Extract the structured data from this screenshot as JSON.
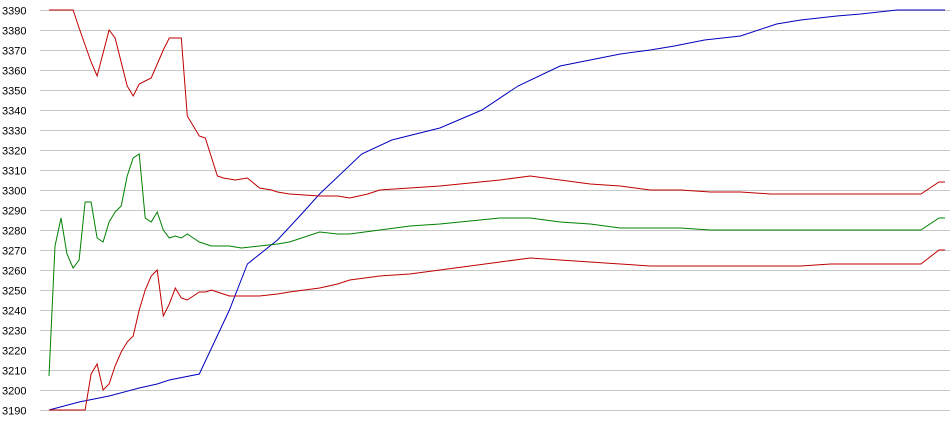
{
  "chart_data": {
    "type": "line",
    "title": "",
    "xlabel": "",
    "ylabel": "",
    "ylim": [
      3190,
      3390
    ],
    "yticks": [
      3190,
      3200,
      3210,
      3220,
      3230,
      3240,
      3250,
      3260,
      3270,
      3280,
      3290,
      3300,
      3310,
      3320,
      3330,
      3340,
      3350,
      3360,
      3370,
      3380,
      3390
    ],
    "ytick_labels": [
      "3190",
      "3200",
      "3210",
      "3220",
      "3230",
      "3240",
      "3250",
      "3260",
      "3270",
      "3280",
      "3290",
      "3300",
      "3310",
      "3320",
      "3330",
      "3340",
      "3350",
      "3360",
      "3370",
      "3380",
      "3390"
    ],
    "grid": true,
    "legend": "none",
    "xlim": [
      0,
      149
    ],
    "series": [
      {
        "color": "#0000c0",
        "x": [
          0,
          5,
          10,
          15,
          18,
          20,
          25,
          30,
          33,
          38,
          42,
          45,
          52,
          57,
          65,
          72,
          78,
          85,
          90,
          95,
          100,
          104,
          109,
          115,
          121,
          125,
          131,
          135,
          141,
          149
        ],
        "values": [
          3190,
          3194,
          3197,
          3201,
          3203,
          3205,
          3208,
          3240,
          3263,
          3275,
          3288,
          3298,
          3318,
          3325,
          3331,
          3340,
          3352,
          3362,
          3365,
          3368,
          3370,
          3372,
          3375,
          3377,
          3383,
          3385,
          3387,
          3388,
          3390,
          3390
        ]
      },
      {
        "color": "#c00000",
        "x": [
          0,
          2,
          4,
          5,
          7,
          8,
          10,
          11,
          13,
          14,
          15,
          17,
          19,
          20,
          21,
          22,
          23,
          25,
          26,
          28,
          29,
          31,
          33,
          35,
          37,
          38,
          40,
          45,
          48,
          50,
          53,
          55,
          60,
          65,
          75,
          80,
          85,
          90,
          95,
          100,
          105,
          110,
          115,
          120,
          125,
          130,
          135,
          140,
          145,
          148,
          149
        ],
        "values": [
          3390,
          3390,
          3390,
          3381,
          3364,
          3357,
          3380,
          3376,
          3352,
          3347,
          3353,
          3356,
          3370,
          3376,
          3376,
          3376,
          3337,
          3327,
          3326,
          3307,
          3306,
          3305,
          3306,
          3301,
          3300,
          3299,
          3298,
          3297,
          3297,
          3296,
          3298,
          3300,
          3301,
          3302,
          3305,
          3307,
          3305,
          3303,
          3302,
          3300,
          3300,
          3299,
          3299,
          3298,
          3298,
          3298,
          3298,
          3298,
          3298,
          3304,
          3304
        ]
      },
      {
        "color": "#008000",
        "x": [
          0,
          1,
          2,
          3,
          4,
          5,
          6,
          7,
          8,
          9,
          10,
          11,
          12,
          13,
          14,
          15,
          16,
          17,
          18,
          19,
          20,
          21,
          22,
          23,
          24,
          25,
          26,
          27,
          28,
          29,
          30,
          32,
          35,
          38,
          40,
          45,
          48,
          50,
          55,
          60,
          65,
          75,
          80,
          85,
          90,
          95,
          100,
          105,
          110,
          115,
          120,
          125,
          130,
          135,
          140,
          145,
          148,
          149
        ],
        "values": [
          3207,
          3272,
          3286,
          3268,
          3261,
          3265,
          3294,
          3294,
          3276,
          3274,
          3284,
          3289,
          3292,
          3307,
          3316,
          3318,
          3286,
          3284,
          3289,
          3280,
          3276,
          3277,
          3276,
          3278,
          3276,
          3274,
          3273,
          3272,
          3272,
          3272,
          3272,
          3271,
          3272,
          3273,
          3274,
          3279,
          3278,
          3278,
          3280,
          3282,
          3283,
          3286,
          3286,
          3284,
          3283,
          3281,
          3281,
          3281,
          3280,
          3280,
          3280,
          3280,
          3280,
          3280,
          3280,
          3280,
          3286,
          3286
        ]
      },
      {
        "color": "#c00000",
        "x": [
          0,
          2,
          4,
          6,
          7,
          8,
          9,
          10,
          11,
          12,
          13,
          14,
          15,
          16,
          17,
          18,
          19,
          20,
          21,
          22,
          23,
          24,
          25,
          26,
          27,
          28,
          29,
          30,
          32,
          35,
          38,
          40,
          45,
          48,
          50,
          55,
          60,
          65,
          75,
          80,
          85,
          90,
          95,
          100,
          105,
          110,
          115,
          120,
          125,
          130,
          135,
          140,
          145,
          148,
          149
        ],
        "values": [
          3190,
          3190,
          3190,
          3190,
          3208,
          3213,
          3200,
          3203,
          3212,
          3219,
          3224,
          3227,
          3240,
          3250,
          3257,
          3260,
          3237,
          3243,
          3251,
          3246,
          3245,
          3247,
          3249,
          3249,
          3250,
          3249,
          3248,
          3247,
          3247,
          3247,
          3248,
          3249,
          3251,
          3253,
          3255,
          3257,
          3258,
          3260,
          3264,
          3266,
          3265,
          3264,
          3263,
          3262,
          3262,
          3262,
          3262,
          3262,
          3262,
          3263,
          3263,
          3263,
          3263,
          3270,
          3270
        ]
      }
    ]
  }
}
